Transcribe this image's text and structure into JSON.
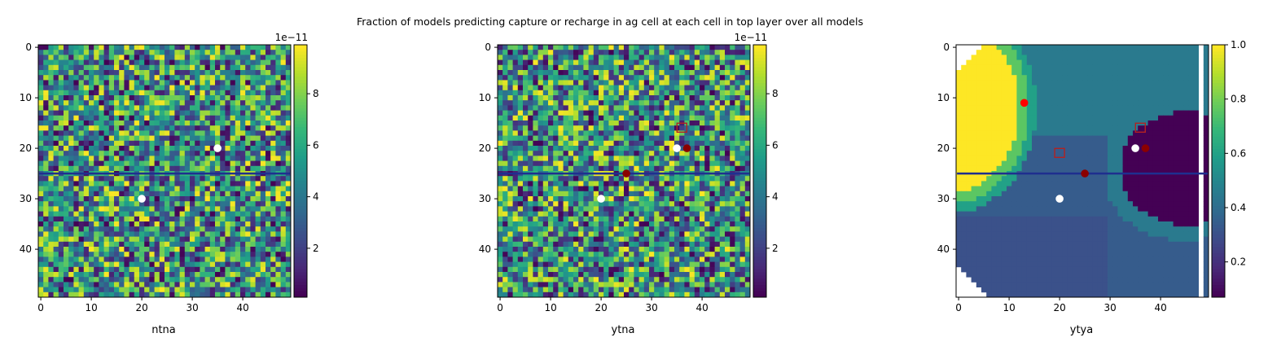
{
  "suptitle": "Fraction of models predicting capture or recharge in ag cell at each cell in top layer over all models",
  "panels": [
    {
      "xlabel": "ntna",
      "cbar_offset": "1e−11"
    },
    {
      "xlabel": "ytna",
      "cbar_offset": "1e−11"
    },
    {
      "xlabel": "ytya",
      "cbar_offset": ""
    }
  ],
  "chart_data": [
    {
      "type": "heatmap",
      "title": "",
      "xlabel": "ntna",
      "ylabel": "",
      "grid_size": [
        50,
        50
      ],
      "xlim": [
        0,
        49
      ],
      "ylim": [
        49,
        0
      ],
      "x_ticks": [
        0,
        10,
        20,
        30,
        40
      ],
      "y_ticks": [
        0,
        10,
        20,
        30,
        40
      ],
      "colorbar": {
        "range": [
          1e-12,
          9.9e-11
        ],
        "ticks": [
          2,
          4,
          6,
          8
        ],
        "tick_labels": [
          "2",
          "4",
          "6",
          "8"
        ],
        "offset_label": "1e−11",
        "colormap": "viridis"
      },
      "pattern": "random noise",
      "line": {
        "y": 25.5,
        "x_from": 0,
        "x_to": 49,
        "color": "#1f2f8f"
      },
      "markers": [
        {
          "x": 35,
          "y": 20,
          "shape": "circle",
          "color": "#ffffff"
        },
        {
          "x": 20,
          "y": 30,
          "shape": "circle",
          "color": "#ffffff"
        }
      ]
    },
    {
      "type": "heatmap",
      "title": "",
      "xlabel": "ytna",
      "ylabel": "",
      "grid_size": [
        50,
        50
      ],
      "xlim": [
        0,
        49
      ],
      "ylim": [
        49,
        0
      ],
      "x_ticks": [
        0,
        10,
        20,
        30,
        40
      ],
      "y_ticks": [
        0,
        10,
        20,
        30,
        40
      ],
      "colorbar": {
        "range": [
          1e-12,
          9.9e-11
        ],
        "ticks": [
          2,
          4,
          6,
          8
        ],
        "tick_labels": [
          "2",
          "4",
          "6",
          "8"
        ],
        "offset_label": "1e−11",
        "colormap": "viridis"
      },
      "pattern": "random noise",
      "line": {
        "y": 25.5,
        "x_from": 0,
        "x_to": 49,
        "color": "#1f2f8f"
      },
      "markers": [
        {
          "x": 35,
          "y": 20,
          "shape": "circle",
          "color": "#ffffff"
        },
        {
          "x": 20,
          "y": 30,
          "shape": "circle",
          "color": "#ffffff"
        },
        {
          "x": 37,
          "y": 20,
          "shape": "circle",
          "color": "#8b0000"
        },
        {
          "x": 25,
          "y": 25,
          "shape": "circle",
          "color": "#8b0000"
        },
        {
          "x": 36,
          "y": 16,
          "shape": "open-square",
          "color": "#b22222"
        }
      ]
    },
    {
      "type": "heatmap",
      "title": "",
      "xlabel": "ytya",
      "ylabel": "",
      "grid_size": [
        50,
        50
      ],
      "xlim": [
        0,
        49
      ],
      "ylim": [
        49,
        0
      ],
      "x_ticks": [
        0,
        10,
        20,
        30,
        40
      ],
      "y_ticks": [
        0,
        10,
        20,
        30,
        40
      ],
      "colorbar": {
        "range": [
          0.07,
          1.0
        ],
        "ticks": [
          0.2,
          0.4,
          0.6,
          0.8,
          1.0
        ],
        "tick_labels": [
          "0.2",
          "0.4",
          "0.6",
          "0.8",
          "1.0"
        ],
        "colormap": "viridis"
      },
      "pattern": "smooth zones: high (1.0) upper-left lobe around (0-12, 3-22), falling through 0.75 and 0.55 bands; low (~0.07) right lobe x>=33, y 13-35; ~0.3 in lower-left; white (no data) cells at corners and right edge column",
      "line": {
        "y": 25.5,
        "x_from": 0,
        "x_to": 49,
        "color": "#1f2f8f"
      },
      "markers": [
        {
          "x": 13,
          "y": 11,
          "shape": "circle",
          "color": "#ff0000"
        },
        {
          "x": 35,
          "y": 20,
          "shape": "circle",
          "color": "#ffffff"
        },
        {
          "x": 37,
          "y": 20,
          "shape": "circle",
          "color": "#8b0000"
        },
        {
          "x": 25,
          "y": 25,
          "shape": "circle",
          "color": "#8b0000"
        },
        {
          "x": 20,
          "y": 30,
          "shape": "circle",
          "color": "#ffffff"
        },
        {
          "x": 20,
          "y": 21,
          "shape": "open-square",
          "color": "#b22222"
        },
        {
          "x": 36,
          "y": 16,
          "shape": "open-square",
          "color": "#b22222"
        }
      ]
    }
  ]
}
